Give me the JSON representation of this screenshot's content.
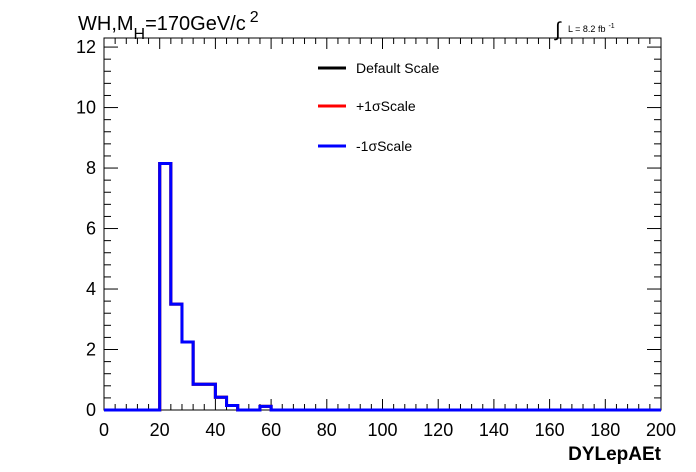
{
  "chart_data": {
    "type": "histogram",
    "title": "WH,M",
    "title_subscript": "H",
    "title_rest": "=170GeV/c",
    "title_superscript": "2",
    "xlabel": "DYLepAEt",
    "ylabel": "",
    "xlim": [
      0,
      200
    ],
    "ylim": [
      0,
      12.3
    ],
    "xticks": [
      0,
      20,
      40,
      60,
      80,
      100,
      120,
      140,
      160,
      180,
      200
    ],
    "yticks": [
      0,
      2,
      4,
      6,
      8,
      10,
      12
    ],
    "bin_width": 4,
    "luminosity": {
      "integral_symbol": "∫",
      "label": "L = 8.2 fb",
      "superscript": "-1"
    },
    "legend_position": "top-center",
    "series": [
      {
        "name": "Default Scale",
        "color": "#000000",
        "bins": [
          [
            0,
            0
          ],
          [
            4,
            0
          ],
          [
            8,
            0
          ],
          [
            12,
            0
          ],
          [
            16,
            0
          ],
          [
            20,
            8.15
          ],
          [
            24,
            3.5
          ],
          [
            28,
            2.25
          ],
          [
            32,
            0.85
          ],
          [
            36,
            0.85
          ],
          [
            40,
            0.42
          ],
          [
            44,
            0.15
          ],
          [
            48,
            0
          ],
          [
            52,
            0
          ],
          [
            56,
            0.12
          ],
          [
            60,
            0
          ]
        ]
      },
      {
        "name": "+1σScale",
        "color": "#ff0000",
        "bins": [
          [
            0,
            0
          ],
          [
            4,
            0
          ],
          [
            8,
            0
          ],
          [
            12,
            0
          ],
          [
            16,
            0
          ],
          [
            20,
            8.15
          ],
          [
            24,
            3.5
          ],
          [
            28,
            2.25
          ],
          [
            32,
            0.85
          ],
          [
            36,
            0.85
          ],
          [
            40,
            0.42
          ],
          [
            44,
            0.15
          ],
          [
            48,
            0
          ],
          [
            52,
            0
          ],
          [
            56,
            0.12
          ],
          [
            60,
            0
          ]
        ]
      },
      {
        "name": "-1σScale",
        "color": "#0000ff",
        "bins": [
          [
            0,
            0
          ],
          [
            4,
            0
          ],
          [
            8,
            0
          ],
          [
            12,
            0
          ],
          [
            16,
            0
          ],
          [
            20,
            8.15
          ],
          [
            24,
            3.5
          ],
          [
            28,
            2.25
          ],
          [
            32,
            0.85
          ],
          [
            36,
            0.85
          ],
          [
            40,
            0.42
          ],
          [
            44,
            0.15
          ],
          [
            48,
            0
          ],
          [
            52,
            0
          ],
          [
            56,
            0.12
          ],
          [
            60,
            0
          ]
        ]
      }
    ]
  }
}
